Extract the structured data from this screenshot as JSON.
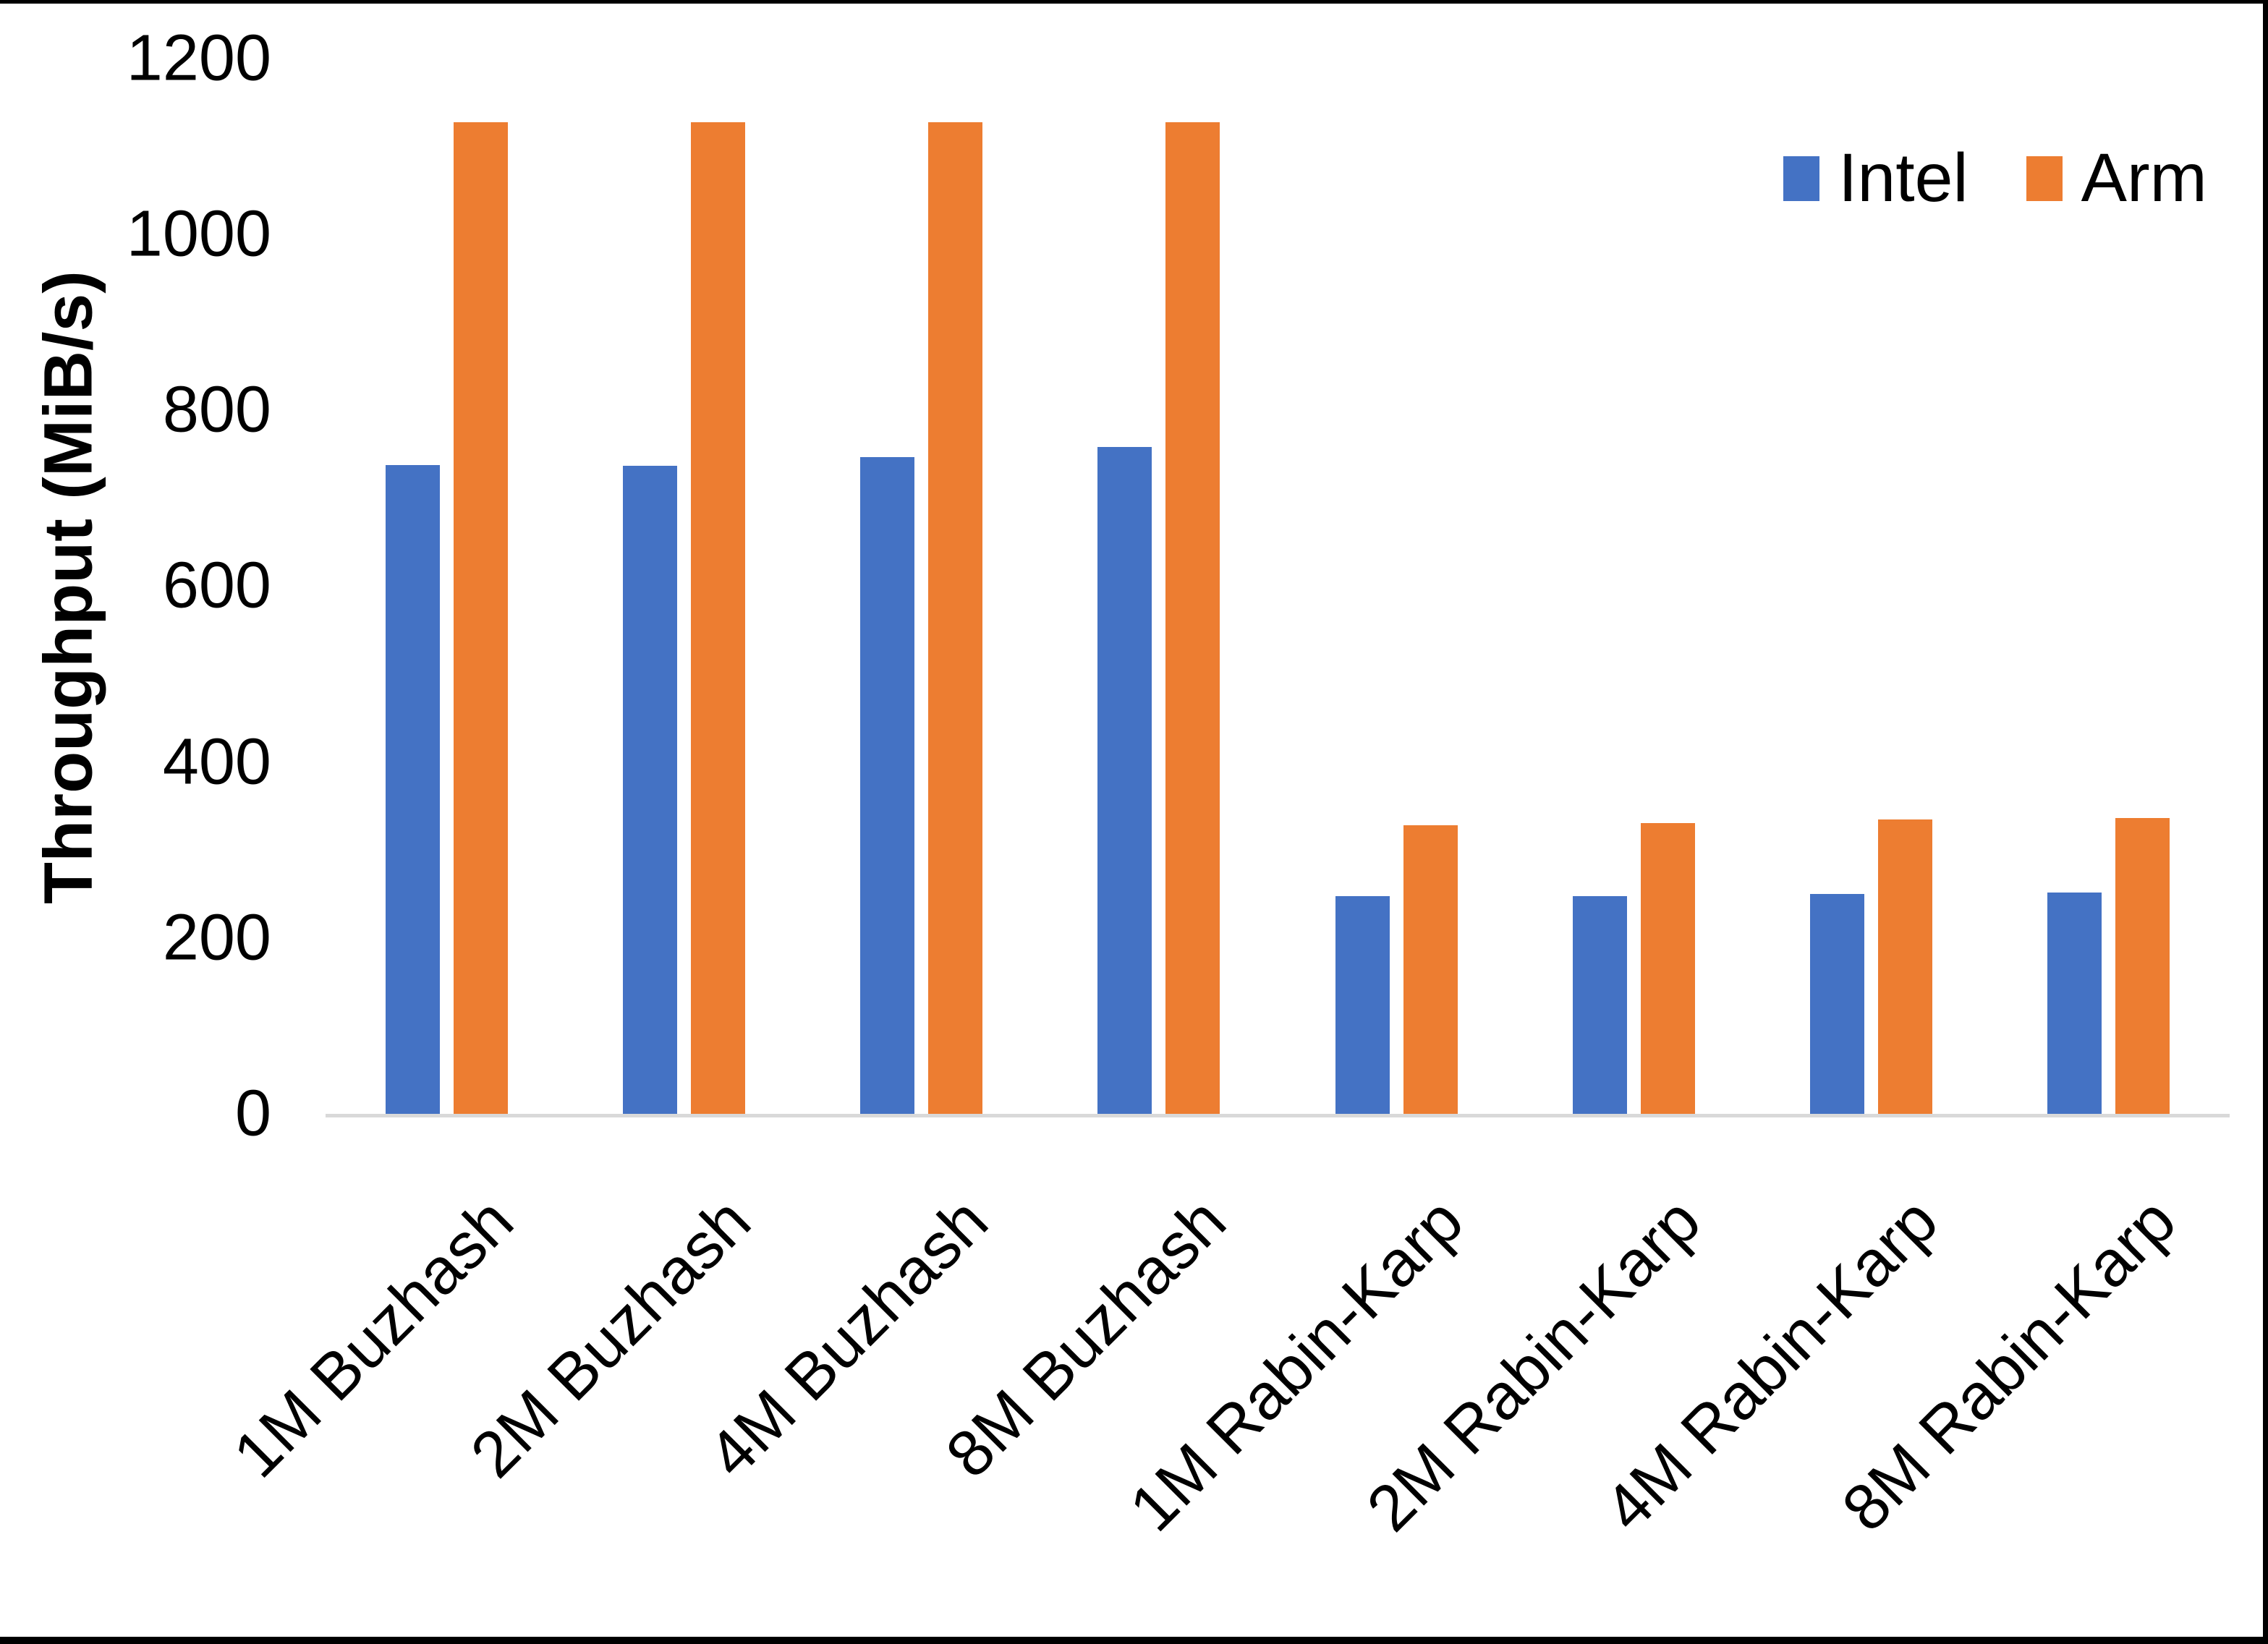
{
  "chart_data": {
    "type": "bar",
    "title": "",
    "ylabel": "Throughput (MiB/s)",
    "xlabel": "",
    "ylim": [
      0,
      1200
    ],
    "yticks": [
      0,
      200,
      400,
      600,
      800,
      1000,
      1200
    ],
    "grid": false,
    "legend_position": "top-right",
    "categories": [
      "1M Buzhash",
      "2M Buzhash",
      "4M Buzhash",
      "8M Buzhash",
      "1M Rabin-Karp",
      "2M Rabin-Karp",
      "4M Rabin-Karp",
      "8M Rabin-Karp"
    ],
    "series": [
      {
        "name": "Intel",
        "color": "#4472C4",
        "values": [
          739,
          738,
          748,
          760,
          249,
          249,
          252,
          253
        ]
      },
      {
        "name": "Arm",
        "color": "#ED7D31",
        "values": [
          1129,
          1129,
          1129,
          1129,
          330,
          332,
          336,
          338
        ]
      }
    ]
  },
  "legend": {
    "items": [
      {
        "label": "Intel",
        "color": "#4472C4"
      },
      {
        "label": "Arm",
        "color": "#ED7D31"
      }
    ]
  },
  "colors": {
    "background": "#FFFFFF",
    "axis_line": "#D9D9D9",
    "text": "#000000",
    "frame_edge": "#000000"
  }
}
